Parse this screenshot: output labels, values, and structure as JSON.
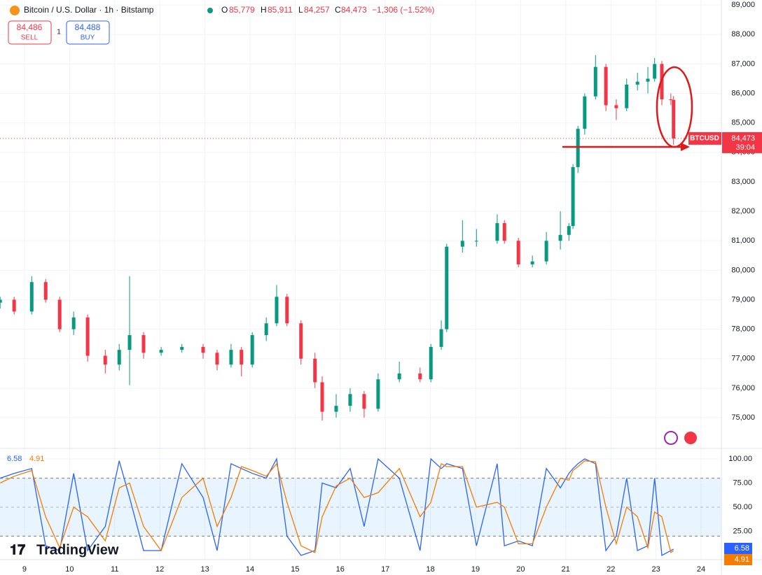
{
  "header": {
    "title": "Bitcoin / U.S. Dollar · 1h · Bitstamp",
    "o": "O",
    "open": "85,779",
    "h": "H",
    "high": "85,911",
    "l": "L",
    "low": "84,257",
    "c": "C",
    "close": "84,473",
    "change": "−1,306 (−1.52%)"
  },
  "trading": {
    "sell_price": "84,486",
    "sell": "SELL",
    "qty": "1",
    "buy_price": "84,488",
    "buy": "BUY"
  },
  "price_tag": {
    "symbol": "BTCUSD",
    "price": "84,473",
    "countdown": "39:04"
  },
  "brand": "TradingView",
  "chart_data": [
    {
      "type": "candlestick",
      "up_color": "#089981",
      "down_color": "#f23645",
      "x": [
        8.46,
        8.77,
        9.16,
        9.47,
        9.78,
        10.09,
        10.4,
        10.79,
        11.1,
        11.33,
        11.64,
        12.03,
        12.49,
        12.96,
        13.27,
        13.58,
        13.81,
        14.05,
        14.36,
        14.59,
        14.82,
        15.13,
        15.44,
        15.6,
        15.91,
        16.22,
        16.53,
        16.84,
        17.31,
        17.77,
        18.01,
        18.24,
        18.36,
        18.71,
        19.02,
        19.48,
        19.64,
        19.95,
        20.26,
        20.57,
        20.88,
        21.07,
        21.16,
        21.27,
        21.42,
        21.66,
        21.89,
        22.12,
        22.35,
        22.59,
        22.82,
        22.97,
        23.13,
        23.33,
        23.39
      ],
      "open": [
        78900,
        79000,
        78600,
        79600,
        79000,
        78000,
        78400,
        77100,
        76800,
        77300,
        77800,
        77200,
        77300,
        77400,
        77200,
        76800,
        77300,
        76800,
        77800,
        78200,
        79100,
        78200,
        77000,
        76200,
        75200,
        75400,
        75800,
        75300,
        76300,
        76500,
        76300,
        77400,
        78000,
        80800,
        81000,
        81000,
        81600,
        81000,
        80200,
        80300,
        81000,
        81200,
        81500,
        83500,
        84800,
        85900,
        86900,
        85600,
        85500,
        86300,
        86400,
        86500,
        87000,
        85800,
        85779
      ],
      "high": [
        79100,
        79100,
        79800,
        79700,
        79100,
        78600,
        78500,
        77300,
        77500,
        79800,
        77900,
        77400,
        77500,
        77500,
        77300,
        77500,
        77400,
        77900,
        78400,
        79500,
        79200,
        78300,
        77200,
        76400,
        75800,
        76000,
        75900,
        76500,
        76900,
        76700,
        77500,
        78300,
        80900,
        81700,
        81400,
        81900,
        81700,
        81100,
        80500,
        81300,
        82000,
        81600,
        83600,
        84900,
        86000,
        87300,
        87000,
        85800,
        86500,
        86700,
        86900,
        87200,
        87100,
        86000,
        85911
      ],
      "low": [
        78700,
        78500,
        78500,
        78900,
        77900,
        77800,
        76900,
        76500,
        76600,
        76100,
        77000,
        77100,
        77200,
        77000,
        76600,
        76700,
        76400,
        76700,
        77600,
        78100,
        78100,
        76800,
        76000,
        74900,
        75000,
        75200,
        75000,
        75200,
        76200,
        76200,
        76200,
        77300,
        77900,
        80600,
        80800,
        80900,
        80900,
        80100,
        80100,
        80200,
        80700,
        81000,
        81400,
        83300,
        84600,
        85800,
        85400,
        85100,
        85400,
        86100,
        86000,
        86400,
        85600,
        85600,
        84257
      ],
      "close": [
        79000,
        78600,
        79600,
        79000,
        78000,
        78400,
        77100,
        76800,
        77300,
        77800,
        77200,
        77300,
        77400,
        77200,
        76800,
        77300,
        76800,
        77800,
        78200,
        79100,
        78200,
        77000,
        76200,
        75200,
        75400,
        75800,
        75300,
        76300,
        76500,
        76300,
        77400,
        78000,
        80800,
        81000,
        81000,
        81600,
        81000,
        80200,
        80300,
        81000,
        81200,
        81500,
        83500,
        84800,
        85900,
        86900,
        85600,
        85500,
        86300,
        86400,
        86500,
        87000,
        85800,
        85779,
        84473
      ],
      "xlim": [
        8.457,
        24.45
      ],
      "xticks": [
        9,
        10,
        11,
        12,
        13,
        14,
        15,
        16,
        17,
        18,
        19,
        20,
        21,
        22,
        23,
        24
      ],
      "ylim": [
        73980,
        89170
      ],
      "yticks": [
        {
          "value": 75000,
          "label": "75,000"
        },
        {
          "value": 76000,
          "label": "76,000"
        },
        {
          "value": 77000,
          "label": "77,000"
        },
        {
          "value": 78000,
          "label": "78,000"
        },
        {
          "value": 79000,
          "label": "79,000"
        },
        {
          "value": 80000,
          "label": "80,000"
        },
        {
          "value": 81000,
          "label": "81,000"
        },
        {
          "value": 82000,
          "label": "82,000"
        },
        {
          "value": 83000,
          "label": "83,000"
        },
        {
          "value": 84000,
          "label": "84,000"
        },
        {
          "value": 85000,
          "label": "85,000"
        },
        {
          "value": 86000,
          "label": "86,000"
        },
        {
          "value": 87000,
          "label": "87,000"
        },
        {
          "value": 88000,
          "label": "88,000"
        },
        {
          "value": 89000,
          "label": "89,000"
        }
      ],
      "grid": true
    },
    {
      "type": "line",
      "x": [
        8.46,
        8.77,
        9.16,
        9.47,
        9.78,
        10.09,
        10.4,
        10.79,
        11.1,
        11.33,
        11.64,
        12.03,
        12.49,
        12.96,
        13.27,
        13.58,
        13.81,
        14.05,
        14.36,
        14.59,
        14.82,
        15.13,
        15.44,
        15.6,
        15.91,
        16.22,
        16.53,
        16.84,
        17.31,
        17.77,
        18.01,
        18.24,
        18.36,
        18.71,
        19.02,
        19.48,
        19.64,
        19.95,
        20.26,
        20.57,
        20.88,
        21.07,
        21.16,
        21.27,
        21.42,
        21.66,
        21.89,
        22.12,
        22.35,
        22.59,
        22.82,
        22.97,
        23.13,
        23.33,
        23.39
      ],
      "series": [
        {
          "color": "#2962ff",
          "values": [
            80,
            85,
            90,
            10,
            5,
            85,
            5,
            30,
            98,
            60,
            5,
            5,
            95,
            60,
            5,
            95,
            90,
            85,
            80,
            100,
            20,
            0,
            5,
            75,
            70,
            90,
            30,
            100,
            80,
            5,
            100,
            90,
            95,
            90,
            10,
            95,
            10,
            15,
            10,
            90,
            70,
            85,
            90,
            95,
            100,
            95,
            5,
            20,
            80,
            5,
            10,
            80,
            0,
            5,
            6.58
          ]
        },
        {
          "color": "#f57c00",
          "values": [
            75,
            82,
            88,
            40,
            8,
            50,
            40,
            15,
            70,
            75,
            30,
            5,
            60,
            80,
            30,
            60,
            92,
            88,
            82,
            95,
            55,
            10,
            3,
            40,
            72,
            80,
            60,
            65,
            90,
            40,
            55,
            95,
            92,
            92,
            50,
            55,
            50,
            12,
            12,
            50,
            80,
            78,
            88,
            92,
            98,
            97,
            50,
            12,
            50,
            40,
            8,
            45,
            40,
            3,
            4.91
          ]
        }
      ],
      "xlim": [
        8.457,
        24.45
      ],
      "ylim": [
        -2.9,
        108.7
      ],
      "band": [
        20,
        80
      ],
      "yticks": [
        {
          "value": 25,
          "label": "25.00"
        },
        {
          "value": 50,
          "label": "50.00"
        },
        {
          "value": 75,
          "label": "75.00"
        },
        {
          "value": 100,
          "label": "100.00"
        }
      ]
    }
  ]
}
